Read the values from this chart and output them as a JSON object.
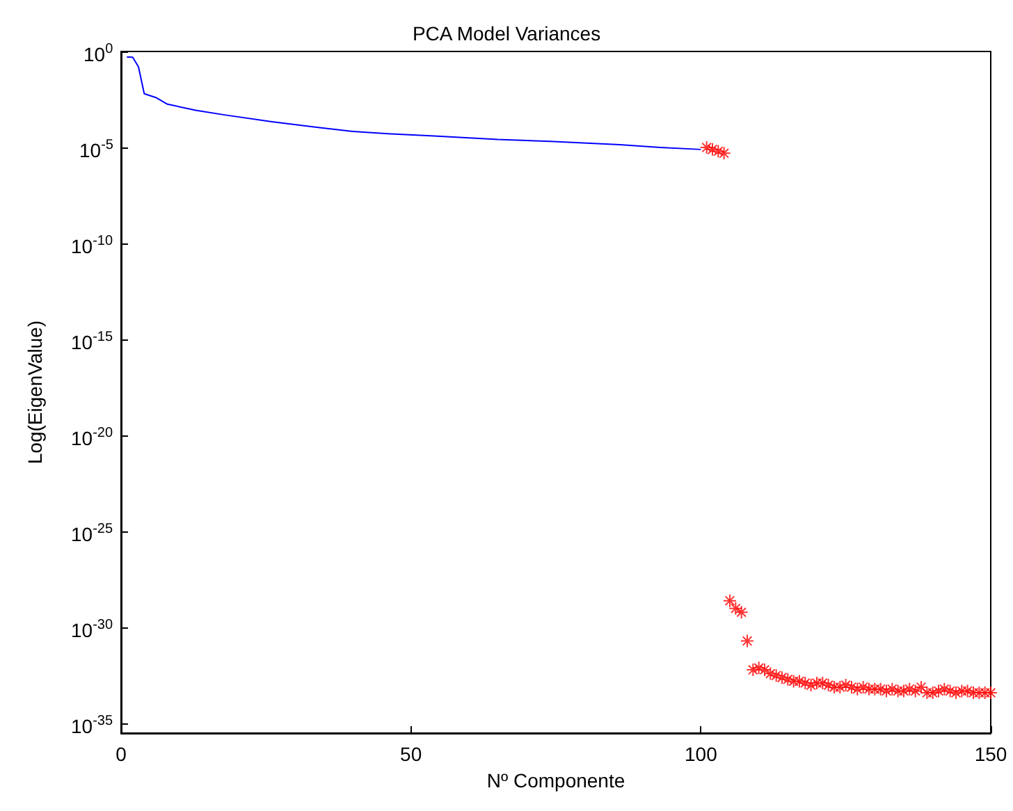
{
  "chart_data": {
    "type": "line",
    "title": "PCA Model Variances",
    "xlabel": "Nº Componente",
    "ylabel": "Log(EigenValue)",
    "log": "y",
    "grid": false,
    "xlim": [
      0,
      150
    ],
    "xticks": [
      0,
      50,
      100,
      150
    ],
    "ylim": [
      3.2e-36,
      1
    ],
    "yticks": [
      {
        "value": 1,
        "label": "10$^{0}$"
      },
      {
        "value": 1e-05,
        "label": "10$^{-5}$"
      },
      {
        "value": 1e-10,
        "label": "10$^{-10}$"
      },
      {
        "value": 1e-15,
        "label": "10$^{-15}$"
      },
      {
        "value": 1e-20,
        "label": "10$^{-20}$"
      },
      {
        "value": 1e-25,
        "label": "10$^{-25}$"
      },
      {
        "value": 1e-30,
        "label": "10$^{-30}$"
      },
      {
        "value": 1e-35,
        "label": "10$^{-35}$"
      }
    ],
    "series": [
      {
        "color": "#0000ff",
        "marker": "none",
        "line_style": "solid",
        "x": [
          1,
          2,
          3,
          4,
          6,
          8,
          13,
          18,
          26,
          34,
          40,
          46,
          54,
          65,
          74,
          86,
          93,
          100
        ],
        "values": [
          0.51,
          0.5,
          0.16,
          0.0063,
          0.004,
          0.0018,
          0.00085,
          0.00049,
          0.00022,
          0.00011,
          6.9e-05,
          5.2e-05,
          4e-05,
          2.6e-05,
          2.1e-05,
          1.4e-05,
          1e-05,
          7.9e-06
        ]
      },
      {
        "type": "scatter",
        "color": "#ff0000",
        "marker": "cross",
        "x": [
          101,
          102,
          103,
          104,
          105,
          106,
          107,
          108,
          109,
          110,
          111,
          112,
          113,
          114,
          115,
          116,
          117,
          118,
          119,
          120,
          121,
          122,
          123,
          124,
          125,
          126,
          127,
          128,
          129,
          130,
          131,
          132,
          133,
          134,
          135,
          136,
          137,
          138,
          139,
          140,
          141,
          142,
          143,
          144,
          145,
          146,
          147,
          148,
          149,
          150
        ],
        "values": [
          1e-05,
          7.9e-06,
          6.3e-06,
          5e-06,
          2.5e-29,
          1e-29,
          6.3e-30,
          2e-31,
          6.3e-33,
          7.9e-33,
          6.3e-33,
          4e-33,
          3.2e-33,
          2.5e-33,
          2e-33,
          1.6e-33,
          1.6e-33,
          1.3e-33,
          1e-33,
          1.3e-33,
          1.3e-33,
          1e-33,
          7.9e-34,
          7.9e-34,
          1e-33,
          7.9e-34,
          6.3e-34,
          7.9e-34,
          6.3e-34,
          6.3e-34,
          6.3e-34,
          5e-34,
          6.3e-34,
          5e-34,
          5e-34,
          6.3e-34,
          5e-34,
          7.9e-34,
          4e-34,
          4e-34,
          5e-34,
          6.3e-34,
          5e-34,
          4e-34,
          5e-34,
          5e-34,
          4e-34,
          4e-34,
          4e-34,
          4e-34
        ]
      }
    ]
  }
}
